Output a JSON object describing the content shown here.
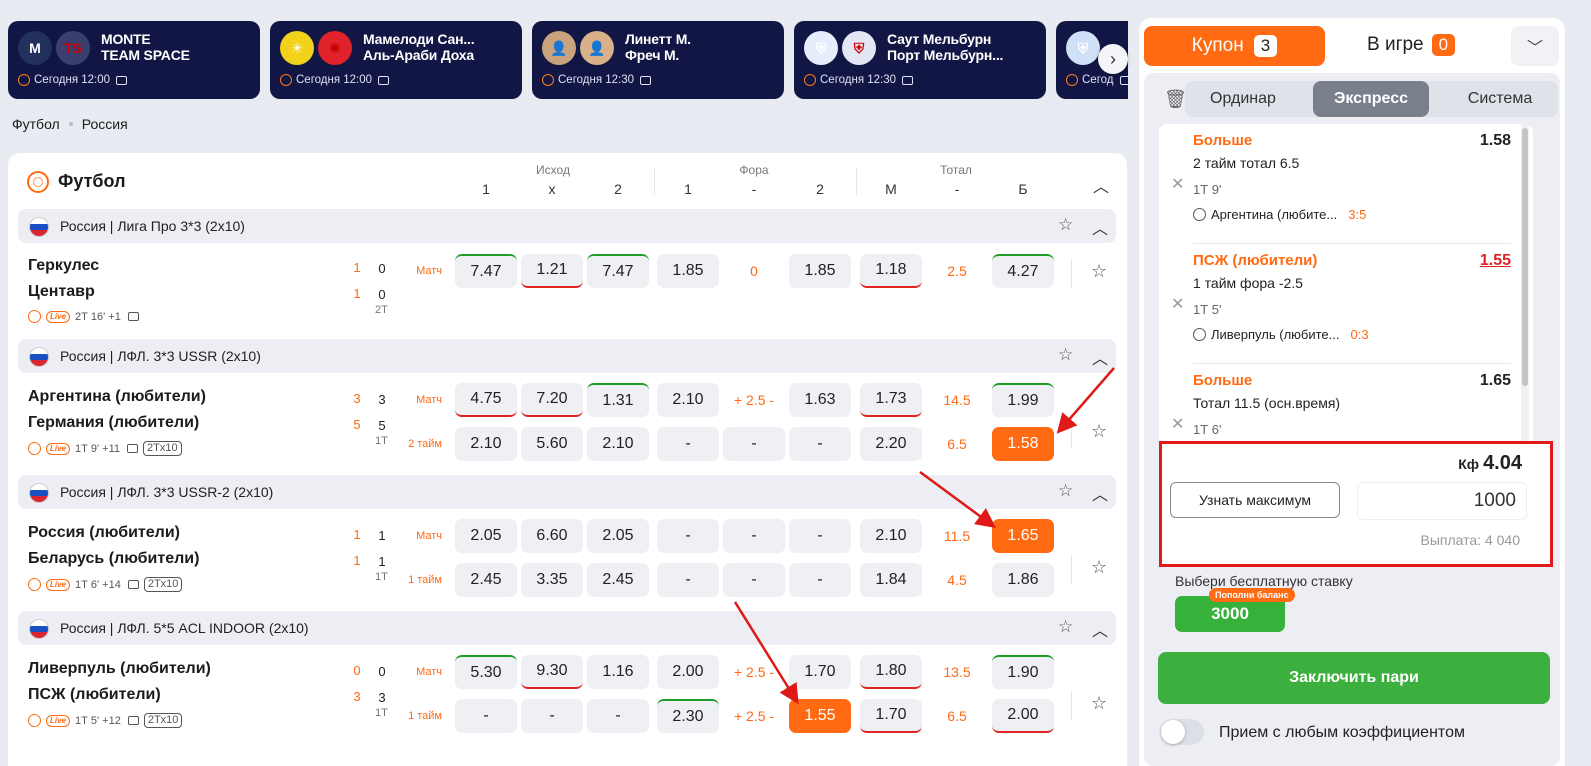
{
  "cards": [
    {
      "team1": "MONTE",
      "team2": "TEAM SPACE",
      "time": "Сегодня 12:00",
      "logo1": "M",
      "logo2": "TS",
      "c1": "#23305c",
      "c2": "#3a3f6e"
    },
    {
      "team1": "Мамелоди Сан...",
      "team2": "Аль-Араби Доха",
      "time": "Сегодня 12:00",
      "logo1": "☀",
      "logo2": "✺",
      "c1": "#f2d21b",
      "c2": "#e0222b"
    },
    {
      "team1": "Линетт М.",
      "team2": "Фреч М.",
      "time": "Сегодня 12:30",
      "logo1": "👤",
      "logo2": "👤",
      "c1": "#c9a27e",
      "c2": "#d8b08a"
    },
    {
      "team1": "Саут Мельбурн",
      "team2": "Порт Мельбурн...",
      "time": "Сегодня 12:30",
      "logo1": "⛨",
      "logo2": "⛨",
      "c1": "#e6eefc",
      "c2": "#e3e7f5"
    },
    {
      "team1": "",
      "team2": "",
      "time": "Сегод",
      "logo1": "⛨",
      "logo2": "",
      "c1": "#cfe0f7",
      "c2": "#121645"
    }
  ],
  "breadcrumb": [
    "Футбол",
    "Россия"
  ],
  "sport_title": "Футбол",
  "headers": {
    "groups": [
      "Исход",
      "Фора",
      "Тотал"
    ],
    "cols": [
      "1",
      "х",
      "2",
      "1",
      "-",
      "2",
      "М",
      "-",
      "Б"
    ]
  },
  "leagues": [
    {
      "name": "Россия | Лига Про 3*3 (2x10)",
      "matches": [
        {
          "team1": "Геркулес",
          "team2": "Центавр",
          "s1a": "1",
          "s1b": "0",
          "s2a": "1",
          "s2b": "0",
          "period": "2Т",
          "info": "2Т 16'  +1",
          "fmt": "",
          "rows": [
            {
              "label": "Матч",
              "cells": [
                "7.47",
                "1.21",
                "7.47",
                "1.85",
                "0",
                "1.85",
                "1.18",
                "2.5",
                "4.27"
              ]
            }
          ]
        }
      ]
    },
    {
      "name": "Россия | ЛФЛ. 3*3 USSR (2x10)",
      "matches": [
        {
          "team1": "Аргентина (любители)",
          "team2": "Германия (любители)",
          "s1a": "3",
          "s1b": "3",
          "s2a": "5",
          "s2b": "5",
          "period": "1Т",
          "info": "1Т 9'  +11",
          "fmt": "2Тx10",
          "rows": [
            {
              "label": "Матч",
              "cells": [
                "4.75",
                "7.20",
                "1.31",
                "2.10",
                "+ 2.5 -",
                "1.63",
                "1.73",
                "14.5",
                "1.99"
              ]
            },
            {
              "label": "2 тайм",
              "cells": [
                "2.10",
                "5.60",
                "2.10",
                "-",
                "-",
                "-",
                "2.20",
                "6.5",
                "1.58"
              ]
            }
          ]
        }
      ]
    },
    {
      "name": "Россия | ЛФЛ. 3*3 USSR-2 (2x10)",
      "matches": [
        {
          "team1": "Россия (любители)",
          "team2": "Беларусь (любители)",
          "s1a": "1",
          "s1b": "1",
          "s2a": "1",
          "s2b": "1",
          "period": "1Т",
          "info": "1Т 6'  +14",
          "fmt": "2Тx10",
          "rows": [
            {
              "label": "Матч",
              "cells": [
                "2.05",
                "6.60",
                "2.05",
                "-",
                "-",
                "-",
                "2.10",
                "11.5",
                "1.65"
              ]
            },
            {
              "label": "1 тайм",
              "cells": [
                "2.45",
                "3.35",
                "2.45",
                "-",
                "-",
                "-",
                "1.84",
                "4.5",
                "1.86"
              ]
            }
          ]
        }
      ]
    },
    {
      "name": "Россия | ЛФЛ. 5*5 ACL INDOOR (2x10)",
      "matches": [
        {
          "team1": "Ливерпуль (любители)",
          "team2": "ПСЖ (любители)",
          "s1a": "0",
          "s1b": "0",
          "s2a": "3",
          "s2b": "3",
          "period": "1Т",
          "info": "1Т 5'  +12",
          "fmt": "2Тx10",
          "rows": [
            {
              "label": "Матч",
              "cells": [
                "5.30",
                "9.30",
                "1.16",
                "2.00",
                "+ 2.5 -",
                "1.70",
                "1.80",
                "13.5",
                "1.90"
              ]
            },
            {
              "label": "1 тайм",
              "cells": [
                "-",
                "-",
                "-",
                "2.30",
                "+ 2.5 -",
                "1.55",
                "1.70",
                "6.5",
                "2.00"
              ]
            }
          ]
        }
      ]
    }
  ],
  "live_label": "Live",
  "coupon": {
    "tab_coupon": "Купон",
    "coupon_count": "3",
    "tab_ingame": "В игре",
    "ingame_count": "0",
    "types": [
      "Ординар",
      "Экспресс",
      "Система"
    ],
    "active_type": "Экспресс",
    "bets": [
      {
        "selection": "Больше",
        "odd": "1.58",
        "market": "2 тайм тотал 6.5",
        "time": "1Т 9'",
        "match": "Аргентина (любите...",
        "score": "3:5",
        "changed": false
      },
      {
        "selection": "ПСЖ (любители)",
        "odd": "1.55",
        "market": "1 тайм фора -2.5",
        "time": "1Т 5'",
        "match": "Ливерпуль (любите...",
        "score": "0:3",
        "changed": true
      },
      {
        "selection": "Больше",
        "odd": "1.65",
        "market": "Тотал 11.5 (осн.время)",
        "time": "1Т 6'",
        "match": "",
        "score": "",
        "changed": false
      }
    ],
    "kf_label": "Кф",
    "kf_value": "4.04",
    "max_button": "Узнать максимум",
    "stake": "1000",
    "payout": "Выплата: 4 040",
    "free_label": "Выбери бесплатную ставку",
    "free_value": "3000",
    "topup": "Пополни баланс",
    "place_button": "Заключить пари",
    "toggle_label": "Прием с любым коэффициентом"
  },
  "colors": {
    "accent": "#ff6a13",
    "green": "#3cb03e",
    "card_bg": "#121645",
    "highlight": "#e01818"
  }
}
